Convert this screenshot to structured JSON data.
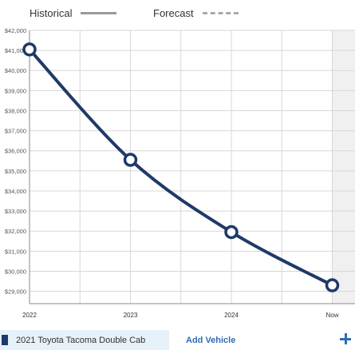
{
  "legend": {
    "historical_label": "Historical",
    "forecast_label": "Forecast"
  },
  "chart_data": {
    "type": "line",
    "categories": [
      "2022",
      "2023",
      "2024",
      "Now"
    ],
    "y_tick_labels": [
      "$42,000",
      "$41,000",
      "$40,000",
      "$39,000",
      "$38,000",
      "$37,000",
      "$36,000",
      "$35,000",
      "$34,000",
      "$33,000",
      "$32,000",
      "$31,000",
      "$30,000",
      "$29,000"
    ],
    "ylim": [
      28500,
      42000
    ],
    "series": [
      {
        "values": [
          41050,
          35550,
          31950,
          29300
        ],
        "color": "#1f3a68"
      }
    ],
    "grid": true,
    "forecast_region_color": "#f0f0f0"
  },
  "vehicle": {
    "name": "2021 Toyota Tacoma Double Cab",
    "color": "#1f3a68"
  },
  "actions": {
    "add_vehicle_label": "Add Vehicle"
  }
}
